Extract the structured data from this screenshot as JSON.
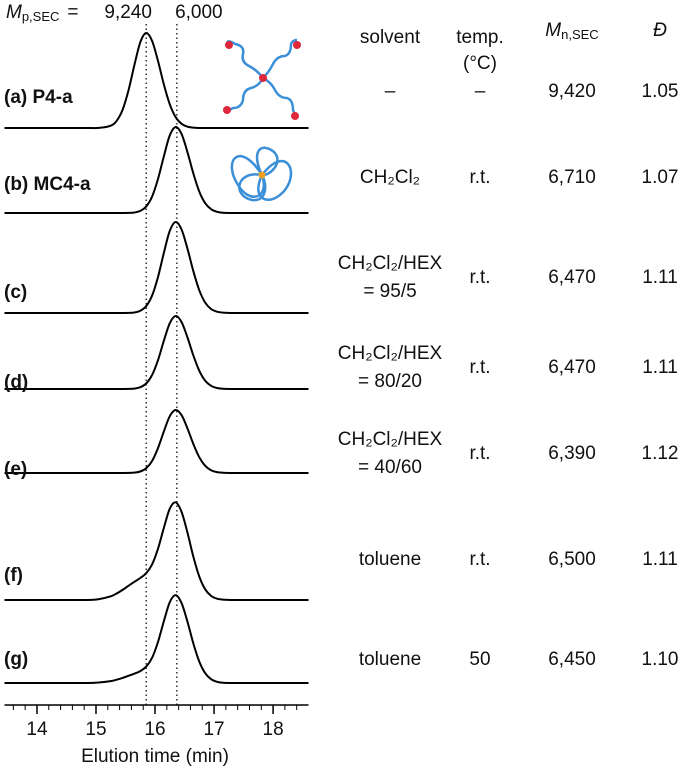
{
  "chart_data": {
    "type": "line",
    "x_label": "Elution time (min)",
    "xlim": [
      13.45,
      18.6
    ],
    "xticks": [
      14,
      15,
      16,
      17,
      18
    ],
    "xminorticks": [
      13.6,
      13.8,
      14.2,
      14.4,
      14.6,
      14.8,
      15.2,
      15.4,
      15.6,
      15.8,
      16.2,
      16.4,
      16.6,
      16.8,
      17.2,
      17.4,
      17.6,
      17.8,
      18.2,
      18.4
    ],
    "marker_title": {
      "symbol": "M",
      "subscript": "p,SEC",
      "suffix": "="
    },
    "markers": [
      {
        "value": 15.85,
        "label": "9,240"
      },
      {
        "value": 16.37,
        "label": "6,000"
      }
    ],
    "x": [
      13.45,
      14.5,
      14.85,
      15.05,
      15.25,
      15.35,
      15.45,
      15.55,
      15.65,
      15.75,
      15.85,
      15.95,
      16.05,
      16.15,
      16.25,
      16.35,
      16.45,
      16.55,
      16.65,
      16.75,
      16.85,
      16.95,
      17.05,
      17.15,
      17.35,
      17.55,
      18.0,
      18.6
    ],
    "series": [
      {
        "name": "(a) P4-a",
        "color": "#000000",
        "values": [
          0,
          0,
          0,
          0.001,
          0.023,
          0.072,
          0.181,
          0.375,
          0.628,
          0.857,
          0.95,
          0.871,
          0.671,
          0.435,
          0.237,
          0.108,
          0.042,
          0.013,
          0.004,
          0,
          0,
          0,
          0,
          0,
          0,
          0,
          0,
          0
        ]
      },
      {
        "name": "(b) MC4-a",
        "color": "#000000",
        "values": [
          0,
          0,
          0,
          0,
          0,
          0,
          0,
          0.001,
          0.005,
          0.021,
          0.065,
          0.164,
          0.34,
          0.568,
          0.776,
          0.86,
          0.789,
          0.607,
          0.394,
          0.214,
          0.098,
          0.038,
          0.012,
          0.003,
          0,
          0,
          0,
          0
        ]
      },
      {
        "name": "(c)",
        "color": "#000000",
        "values": [
          0,
          0,
          0,
          0,
          0,
          0,
          0,
          0.001,
          0.005,
          0.022,
          0.069,
          0.174,
          0.359,
          0.602,
          0.821,
          0.91,
          0.834,
          0.642,
          0.417,
          0.227,
          0.104,
          0.04,
          0.013,
          0.004,
          0,
          0,
          0,
          0
        ]
      },
      {
        "name": "(d)",
        "color": "#000000",
        "values": [
          0,
          0,
          0,
          0,
          0,
          0,
          0,
          0.001,
          0.004,
          0.018,
          0.055,
          0.139,
          0.288,
          0.483,
          0.658,
          0.73,
          0.669,
          0.515,
          0.334,
          0.182,
          0.083,
          0.032,
          0.01,
          0.003,
          0,
          0,
          0,
          0
        ]
      },
      {
        "name": "(e)",
        "color": "#000000",
        "values": [
          0,
          0,
          0,
          0,
          0,
          0,
          0,
          0.001,
          0.004,
          0.015,
          0.048,
          0.12,
          0.249,
          0.416,
          0.568,
          0.63,
          0.578,
          0.445,
          0.289,
          0.157,
          0.072,
          0.028,
          0.009,
          0.003,
          0,
          0,
          0,
          0
        ]
      },
      {
        "name": "(f)",
        "color": "#000000",
        "values": [
          0,
          0,
          0,
          0.009,
          0.037,
          0.065,
          0.101,
          0.142,
          0.182,
          0.22,
          0.268,
          0.356,
          0.512,
          0.722,
          0.913,
          0.977,
          0.88,
          0.673,
          0.431,
          0.234,
          0.107,
          0.041,
          0.013,
          0.004,
          0,
          0,
          0,
          0
        ]
      },
      {
        "name": "(g)",
        "color": "#000000",
        "values": [
          0,
          0,
          0,
          0.005,
          0.019,
          0.033,
          0.051,
          0.072,
          0.093,
          0.119,
          0.164,
          0.252,
          0.41,
          0.619,
          0.808,
          0.879,
          0.798,
          0.612,
          0.394,
          0.214,
          0.098,
          0.038,
          0.012,
          0.003,
          0,
          0,
          0,
          0
        ]
      }
    ]
  },
  "table": {
    "headers": {
      "solvent": "solvent",
      "temp": [
        "temp.",
        "(°C)"
      ],
      "mn": {
        "symbol": "M",
        "subscript": "n,SEC"
      },
      "d": "Đ"
    },
    "rows": [
      {
        "solvent": [
          "–"
        ],
        "temp": "–",
        "mn": "9,420",
        "d": "1.05"
      },
      {
        "solvent": [
          "CH₂Cl₂"
        ],
        "temp": "r.t.",
        "mn": "6,710",
        "d": "1.07"
      },
      {
        "solvent": [
          "CH₂Cl₂/HEX",
          "= 95/5"
        ],
        "temp": "r.t.",
        "mn": "6,470",
        "d": "1.11"
      },
      {
        "solvent": [
          "CH₂Cl₂/HEX",
          "= 80/20"
        ],
        "temp": "r.t.",
        "mn": "6,470",
        "d": "1.11"
      },
      {
        "solvent": [
          "CH₂Cl₂/HEX",
          "= 40/60"
        ],
        "temp": "r.t.",
        "mn": "6,390",
        "d": "1.12"
      },
      {
        "solvent": [
          "toluene"
        ],
        "temp": "r.t.",
        "mn": "6,500",
        "d": "1.11"
      },
      {
        "solvent": [
          "toluene"
        ],
        "temp": "50",
        "mn": "6,450",
        "d": "1.10"
      }
    ]
  }
}
